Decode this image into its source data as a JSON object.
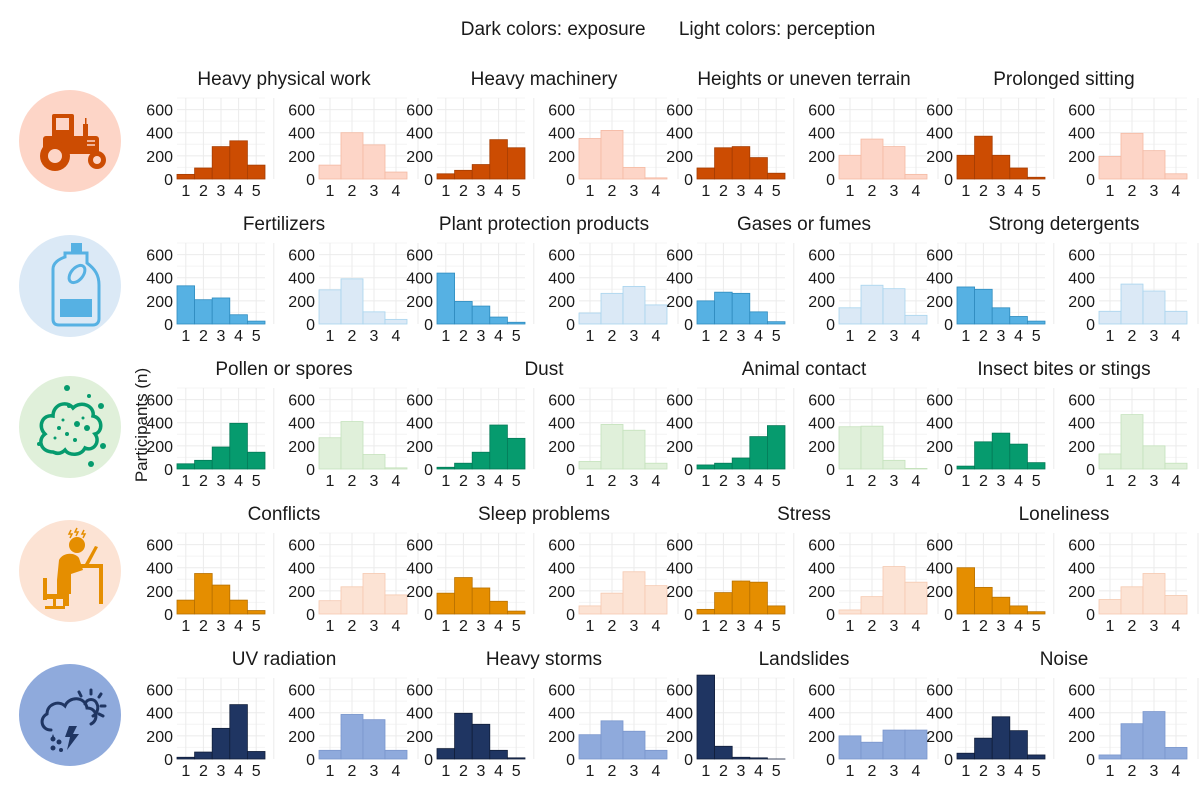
{
  "legend": {
    "dark": "Dark colors: exposure",
    "light": "Light colors: perception"
  },
  "y_axis_label": "Participants (n)",
  "icons": [
    {
      "name": "tractor-icon",
      "category": "physical"
    },
    {
      "name": "chemical-bottle-icon",
      "category": "chemical"
    },
    {
      "name": "pollen-cloud-icon",
      "category": "biological"
    },
    {
      "name": "stressed-worker-icon",
      "category": "psychosocial"
    },
    {
      "name": "storm-weather-icon",
      "category": "environmental"
    }
  ],
  "chart_data": {
    "type": "bar",
    "description": "Small-multiple histograms: exposure frequency (1-5, dark) and risk perception (1-4, light) per hazard",
    "ylabel": "Participants (n)",
    "ylim": [
      0,
      700
    ],
    "yticks": [
      0,
      200,
      400,
      600
    ],
    "exposure_categories": [
      "1",
      "2",
      "3",
      "4",
      "5"
    ],
    "perception_categories": [
      "1",
      "2",
      "3",
      "4"
    ],
    "grid": true,
    "rows": [
      {
        "group": "physical",
        "colors": {
          "dark": "#cc4c02",
          "dark_edge": "#a63d02",
          "light": "#fdd5c7",
          "light_edge": "#f4b9a3",
          "icon_bg": "#fdd5c7"
        },
        "panels": [
          {
            "title": "Heavy physical work",
            "exposure": [
              40,
              95,
              280,
              330,
              120
            ],
            "perception": [
              120,
              400,
              295,
              60
            ]
          },
          {
            "title": "Heavy machinery",
            "exposure": [
              45,
              75,
              125,
              340,
              270
            ],
            "perception": [
              350,
              420,
              100,
              10
            ]
          },
          {
            "title": "Heights or uneven terrain",
            "exposure": [
              95,
              270,
              280,
              185,
              50
            ],
            "perception": [
              205,
              345,
              280,
              40
            ]
          },
          {
            "title": "Prolonged sitting",
            "exposure": [
              205,
              370,
              205,
              95,
              15
            ],
            "perception": [
              195,
              395,
              245,
              45
            ]
          }
        ]
      },
      {
        "group": "chemical",
        "colors": {
          "dark": "#56b1e3",
          "dark_edge": "#2f8cbf",
          "light": "#dbe9f6",
          "light_edge": "#a8d4ee",
          "icon_bg": "#dbe9f6"
        },
        "panels": [
          {
            "title": "Fertilizers",
            "exposure": [
              330,
              210,
              225,
              80,
              25
            ],
            "perception": [
              295,
              390,
              105,
              40
            ]
          },
          {
            "title": "Plant protection products",
            "exposure": [
              440,
              195,
              155,
              60,
              15
            ],
            "perception": [
              95,
              265,
              325,
              165
            ]
          },
          {
            "title": "Gases or fumes",
            "exposure": [
              200,
              275,
              265,
              105,
              20
            ],
            "perception": [
              140,
              335,
              305,
              75
            ]
          },
          {
            "title": "Strong detergents",
            "exposure": [
              320,
              300,
              140,
              65,
              25
            ],
            "perception": [
              110,
              345,
              285,
              110
            ]
          }
        ]
      },
      {
        "group": "biological",
        "colors": {
          "dark": "#069b6e",
          "dark_edge": "#047a57",
          "light": "#e0f0da",
          "light_edge": "#c4e2bb",
          "icon_bg": "#e0f0da"
        },
        "panels": [
          {
            "title": "Pollen or spores",
            "exposure": [
              45,
              75,
              190,
              395,
              145
            ],
            "perception": [
              270,
              410,
              125,
              10
            ]
          },
          {
            "title": "Dust",
            "exposure": [
              15,
              50,
              145,
              380,
              265
            ],
            "perception": [
              65,
              385,
              335,
              50
            ]
          },
          {
            "title": "Animal contact",
            "exposure": [
              35,
              50,
              95,
              280,
              375
            ],
            "perception": [
              365,
              370,
              75,
              5
            ]
          },
          {
            "title": "Insect bites or stings",
            "exposure": [
              25,
              235,
              310,
              215,
              55
            ],
            "perception": [
              130,
              470,
              200,
              50
            ]
          }
        ]
      },
      {
        "group": "psychosocial",
        "colors": {
          "dark": "#e58e00",
          "dark_edge": "#b87100",
          "light": "#fce3d4",
          "light_edge": "#f5c9b0",
          "icon_bg": "#fce3d4"
        },
        "panels": [
          {
            "title": "Conflicts",
            "exposure": [
              120,
              350,
              250,
              120,
              30
            ],
            "perception": [
              115,
              235,
              350,
              165
            ]
          },
          {
            "title": "Sleep problems",
            "exposure": [
              180,
              315,
              225,
              110,
              25
            ],
            "perception": [
              70,
              180,
              365,
              245
            ]
          },
          {
            "title": "Stress",
            "exposure": [
              40,
              185,
              285,
              275,
              70
            ],
            "perception": [
              35,
              150,
              410,
              275
            ]
          },
          {
            "title": "Loneliness",
            "exposure": [
              400,
              230,
              145,
              70,
              20
            ],
            "perception": [
              125,
              235,
              350,
              160
            ]
          }
        ]
      },
      {
        "group": "environmental",
        "colors": {
          "dark": "#1f3562",
          "dark_edge": "#111e3a",
          "light": "#8faadc",
          "light_edge": "#7a96cc",
          "icon_bg": "#8faadc"
        },
        "panels": [
          {
            "title": "UV radiation",
            "exposure": [
              15,
              60,
              265,
              470,
              65
            ],
            "perception": [
              75,
              385,
              340,
              75
            ]
          },
          {
            "title": "Heavy storms",
            "exposure": [
              90,
              395,
              300,
              75,
              10
            ],
            "perception": [
              210,
              330,
              240,
              75
            ]
          },
          {
            "title": "Landslides",
            "exposure": [
              725,
              110,
              15,
              10,
              0
            ],
            "perception": [
              200,
              145,
              250,
              250
            ]
          },
          {
            "title": "Noise",
            "exposure": [
              50,
              180,
              365,
              245,
              35
            ],
            "perception": [
              35,
              305,
              410,
              100
            ]
          }
        ]
      }
    ]
  }
}
